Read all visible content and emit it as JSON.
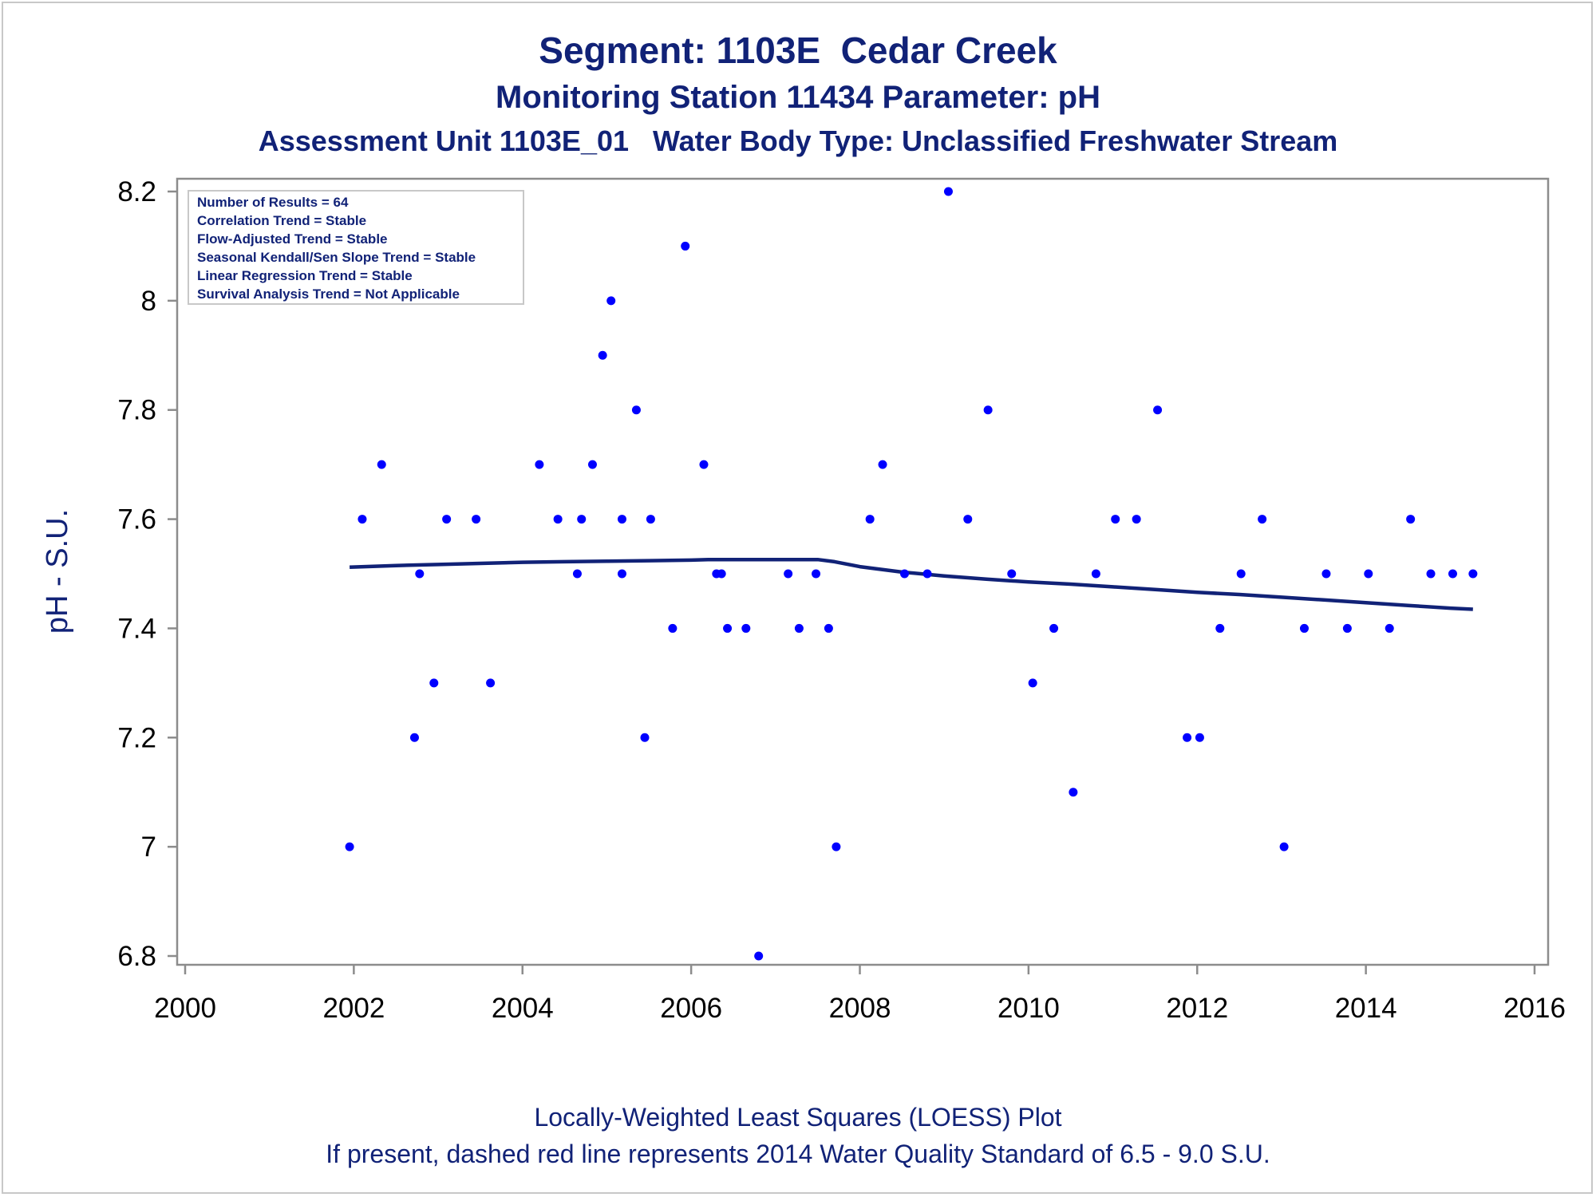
{
  "chart_data": {
    "type": "scatter",
    "title": "Segment: 1103E  Cedar Creek",
    "subtitle": "Monitoring Station 11434 Parameter: pH",
    "subtitle2": "Assessment Unit 1103E_01   Water Body Type: Unclassified Freshwater Stream",
    "ylabel": "pH - S.U.",
    "xlabel": "",
    "footnote1": "Locally-Weighted Least Squares (LOESS) Plot",
    "footnote2": "If present, dashed red line represents 2014 Water Quality Standard of 6.5 - 9.0 S.U.",
    "xlim": [
      2000,
      2016
    ],
    "ylim": [
      6.8,
      8.2
    ],
    "x_ticks": [
      2000,
      2002,
      2004,
      2006,
      2008,
      2010,
      2012,
      2014,
      2016
    ],
    "y_ticks": [
      6.8,
      7,
      7.2,
      7.4,
      7.6,
      7.8,
      8,
      8.2
    ],
    "y_tick_labels": [
      "6.8",
      "7",
      "7.2",
      "7.4",
      "7.6",
      "7.8",
      "8",
      "8.2"
    ],
    "grid": false,
    "legend_placement": "top-left",
    "stats": [
      "Number of Results = 64",
      "Correlation Trend = Stable",
      "Flow-Adjusted Trend = Stable",
      "Seasonal Kendall/Sen Slope Trend = Stable",
      "Linear Regression Trend = Stable",
      "Survival Analysis Trend = Not Applicable"
    ],
    "colors": {
      "points": "#0000ff",
      "loess": "#112277",
      "text": "#112277",
      "axis": "#8c8c8c"
    },
    "series": [
      {
        "type": "scatter",
        "points": [
          [
            2001.95,
            7.0
          ],
          [
            2002.1,
            7.6
          ],
          [
            2002.33,
            7.7
          ],
          [
            2002.72,
            7.2
          ],
          [
            2002.78,
            7.5
          ],
          [
            2002.95,
            7.3
          ],
          [
            2003.1,
            7.6
          ],
          [
            2003.45,
            7.6
          ],
          [
            2003.62,
            7.3
          ],
          [
            2004.2,
            7.7
          ],
          [
            2004.42,
            7.6
          ],
          [
            2004.65,
            7.5
          ],
          [
            2004.7,
            7.6
          ],
          [
            2004.83,
            7.7
          ],
          [
            2004.95,
            7.9
          ],
          [
            2005.05,
            8.0
          ],
          [
            2005.18,
            7.6
          ],
          [
            2005.18,
            7.5
          ],
          [
            2005.35,
            7.8
          ],
          [
            2005.45,
            7.2
          ],
          [
            2005.52,
            7.6
          ],
          [
            2005.78,
            7.4
          ],
          [
            2005.93,
            8.1
          ],
          [
            2006.15,
            7.7
          ],
          [
            2006.3,
            7.5
          ],
          [
            2006.36,
            7.5
          ],
          [
            2006.43,
            7.4
          ],
          [
            2006.65,
            7.4
          ],
          [
            2006.8,
            6.8
          ],
          [
            2007.15,
            7.5
          ],
          [
            2007.28,
            7.4
          ],
          [
            2007.48,
            7.5
          ],
          [
            2007.63,
            7.4
          ],
          [
            2007.72,
            7.0
          ],
          [
            2008.12,
            7.6
          ],
          [
            2008.27,
            7.7
          ],
          [
            2008.53,
            7.5
          ],
          [
            2008.8,
            7.5
          ],
          [
            2009.05,
            8.2
          ],
          [
            2009.28,
            7.6
          ],
          [
            2009.52,
            7.8
          ],
          [
            2009.8,
            7.5
          ],
          [
            2010.05,
            7.3
          ],
          [
            2010.3,
            7.4
          ],
          [
            2010.53,
            7.1
          ],
          [
            2010.8,
            7.5
          ],
          [
            2011.03,
            7.6
          ],
          [
            2011.28,
            7.6
          ],
          [
            2011.53,
            7.8
          ],
          [
            2011.88,
            7.2
          ],
          [
            2012.03,
            7.2
          ],
          [
            2012.27,
            7.4
          ],
          [
            2012.52,
            7.5
          ],
          [
            2012.77,
            7.6
          ],
          [
            2013.03,
            7.0
          ],
          [
            2013.27,
            7.4
          ],
          [
            2013.53,
            7.5
          ],
          [
            2013.78,
            7.4
          ],
          [
            2014.03,
            7.5
          ],
          [
            2014.28,
            7.4
          ],
          [
            2014.53,
            7.6
          ],
          [
            2014.77,
            7.5
          ],
          [
            2015.03,
            7.5
          ],
          [
            2015.27,
            7.5
          ]
        ]
      },
      {
        "type": "line",
        "points": [
          [
            2001.95,
            7.512
          ],
          [
            2002.5,
            7.515
          ],
          [
            2003.0,
            7.517
          ],
          [
            2003.5,
            7.519
          ],
          [
            2004.0,
            7.521
          ],
          [
            2004.5,
            7.522
          ],
          [
            2005.0,
            7.523
          ],
          [
            2005.5,
            7.524
          ],
          [
            2006.0,
            7.525
          ],
          [
            2006.2,
            7.526
          ],
          [
            2006.5,
            7.526
          ],
          [
            2007.0,
            7.526
          ],
          [
            2007.5,
            7.526
          ],
          [
            2007.7,
            7.522
          ],
          [
            2008.0,
            7.513
          ],
          [
            2008.5,
            7.503
          ],
          [
            2009.0,
            7.496
          ],
          [
            2009.5,
            7.49
          ],
          [
            2010.0,
            7.485
          ],
          [
            2010.5,
            7.481
          ],
          [
            2011.0,
            7.476
          ],
          [
            2011.5,
            7.471
          ],
          [
            2012.0,
            7.466
          ],
          [
            2012.5,
            7.462
          ],
          [
            2013.0,
            7.457
          ],
          [
            2013.5,
            7.452
          ],
          [
            2014.0,
            7.447
          ],
          [
            2014.5,
            7.442
          ],
          [
            2015.0,
            7.437
          ],
          [
            2015.27,
            7.435
          ]
        ]
      }
    ]
  }
}
